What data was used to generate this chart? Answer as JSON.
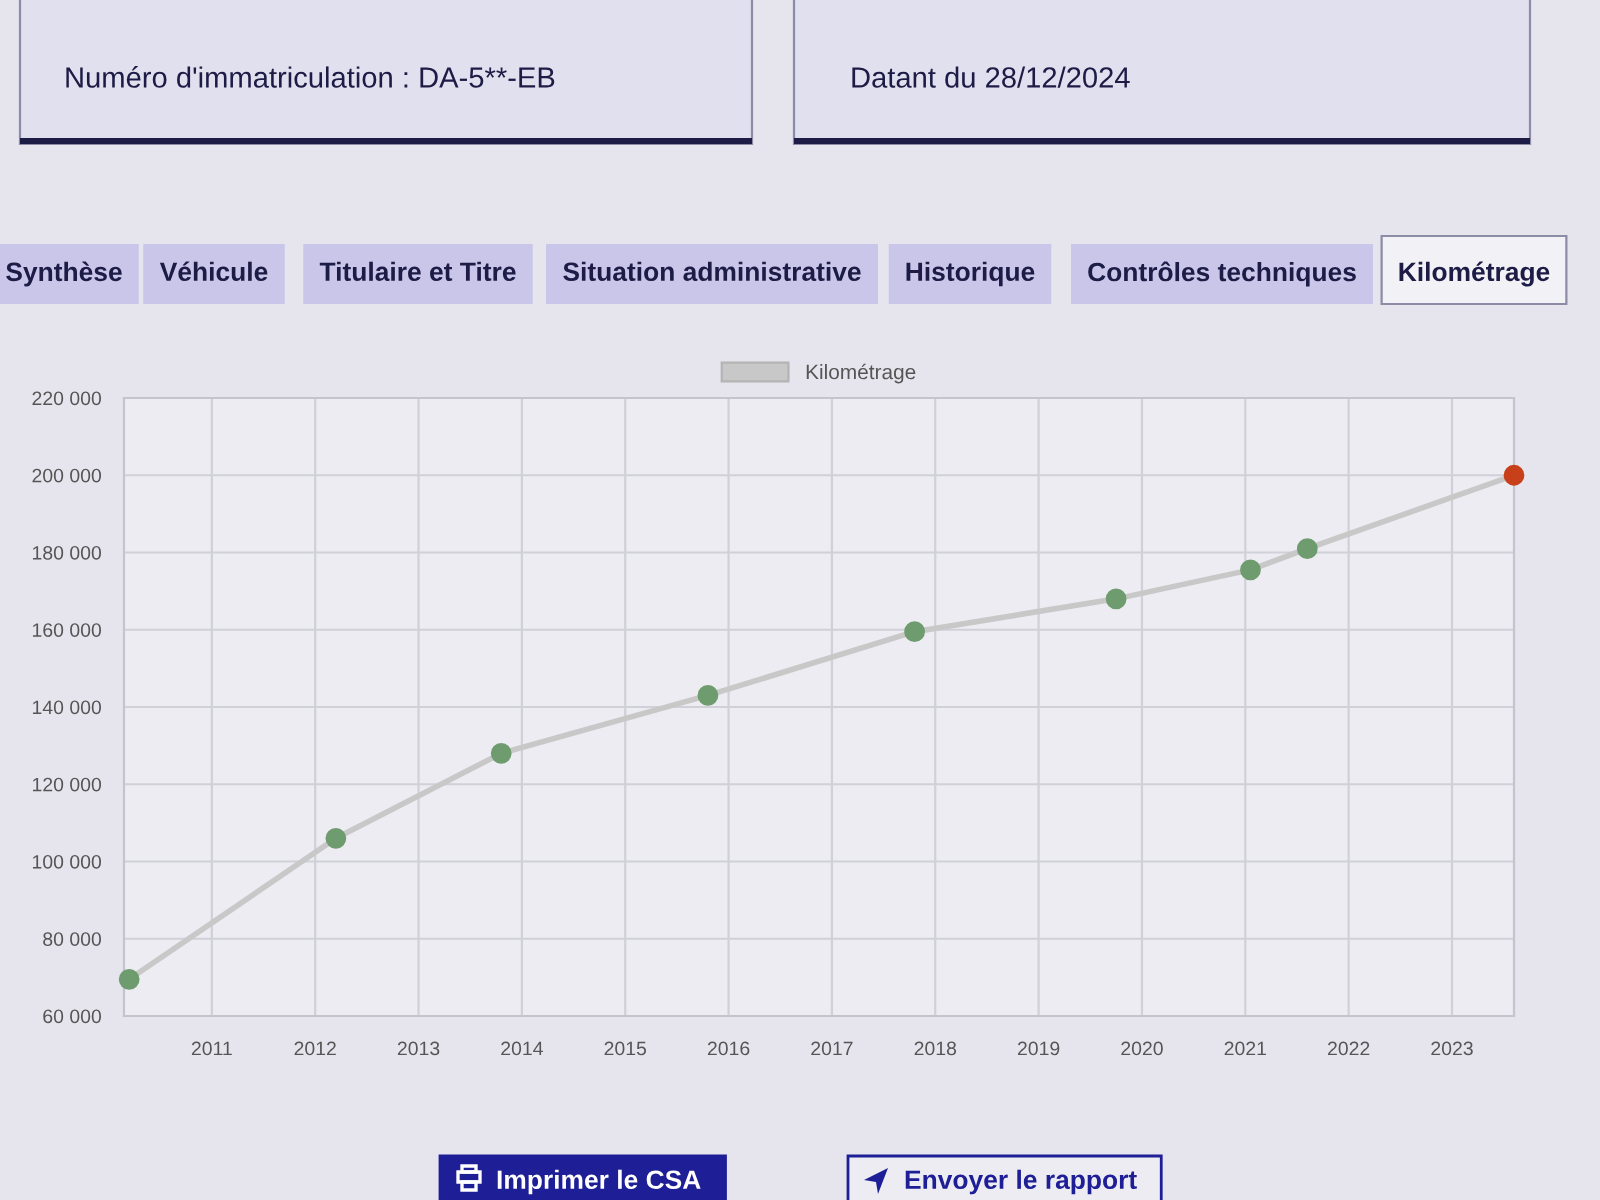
{
  "chart_data": {
    "type": "line",
    "x": [
      2010.2,
      2012.2,
      2013.8,
      2015.8,
      2017.8,
      2019.75,
      2021.05,
      2021.6,
      2023.6
    ],
    "series": [
      {
        "name": "Kilométrage",
        "color": "#c8c8c8",
        "colors": [
          "#6e9c6e",
          "#6e9c6e",
          "#6e9c6e",
          "#6e9c6e",
          "#6e9c6e",
          "#6e9c6e",
          "#6e9c6e",
          "#6e9c6e",
          "#c8401a"
        ],
        "values": [
          69500,
          106000,
          128000,
          143000,
          159500,
          168000,
          175500,
          181000,
          200000
        ]
      }
    ],
    "xlim": [
      2010.15,
      2023.6
    ],
    "xticks": [
      2011,
      2012,
      2013,
      2014,
      2015,
      2016,
      2017,
      2018,
      2019,
      2020,
      2021,
      2022,
      2023
    ],
    "ylim": [
      60000,
      220000
    ],
    "yticks": [
      {
        "value": 60000,
        "label": "60 000"
      },
      {
        "value": 80000,
        "label": "80 000"
      },
      {
        "value": 100000,
        "label": "100 000"
      },
      {
        "value": 120000,
        "label": "120 000"
      },
      {
        "value": 140000,
        "label": "140 000"
      },
      {
        "value": 160000,
        "label": "160 000"
      },
      {
        "value": 180000,
        "label": "180 000"
      },
      {
        "value": 200000,
        "label": "200 000"
      },
      {
        "value": 220000,
        "label": "220 000"
      }
    ],
    "grid": true,
    "legend": "top",
    "marker": "circle",
    "line_style": "solid",
    "annotations": [
      "Numéro d'immatriculation : DA-5**-EB",
      "Datant du 28/12/2024",
      "Synthèse",
      "Véhicule",
      "Titulaire et Titre",
      "Situation administrative",
      "Historique",
      "Contrôles techniques",
      "Kilométrage",
      "Imprimer le CSA",
      "Envoyer le rapport"
    ]
  }
}
